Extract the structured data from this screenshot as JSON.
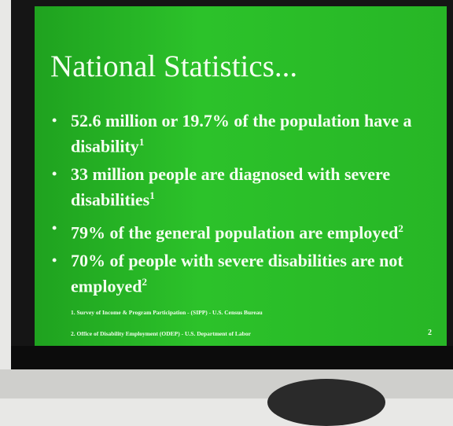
{
  "slide": {
    "title": "National Statistics...",
    "bullets": [
      {
        "text": "52.6 million or 19.7% of the population have a disability",
        "note": "1"
      },
      {
        "text": "33 million people are diagnosed with severe disabilities",
        "note": "1"
      },
      {
        "text": "79% of the general population are employed",
        "note": "2"
      },
      {
        "text": "70% of people with severe disabilities are not employed",
        "note": "2"
      }
    ],
    "footnotes": [
      "1. Survey of Income & Program Participation - (SIPP) - U.S. Census Bureau",
      "2. Office of Disability Employment (ODEP) - U.S. Department of Labor"
    ],
    "page_number": "2"
  }
}
